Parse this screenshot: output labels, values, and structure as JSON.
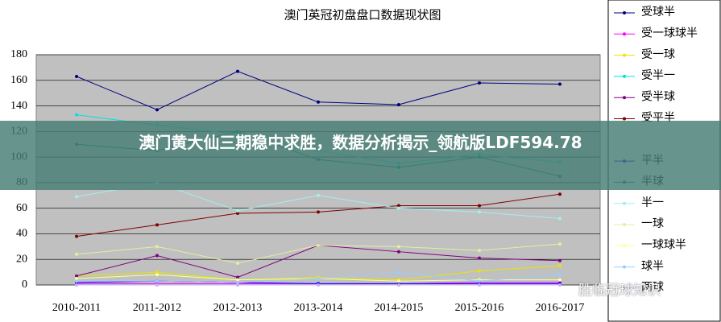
{
  "chart_data": {
    "type": "line",
    "title": "澳门英冠初盘盘口数据现状图",
    "categories": [
      "2010-2011",
      "2011-2012",
      "2012-2013",
      "2013-2014",
      "2014-2015",
      "2015-2016",
      "2016-2017"
    ],
    "ylim": [
      0,
      180
    ],
    "yticks": [
      0,
      20,
      40,
      60,
      80,
      100,
      120,
      140,
      160,
      180
    ],
    "grid": true,
    "series": [
      {
        "name": "受球半",
        "color": "#000080",
        "values": [
          163,
          137,
          167,
          143,
          141,
          158,
          157
        ]
      },
      {
        "name": "受一球球半",
        "color": "#ff00ff",
        "values": [
          1,
          1,
          1,
          1,
          1,
          2,
          2
        ]
      },
      {
        "name": "受一球",
        "color": "#e6e600",
        "values": [
          7,
          10,
          4,
          6,
          4,
          11,
          15
        ]
      },
      {
        "name": "受半一",
        "color": "#00e0e0",
        "values": [
          133,
          125,
          118,
          105,
          95,
          102,
          96
        ]
      },
      {
        "name": "受半球",
        "color": "#800080",
        "values": [
          7,
          23,
          6,
          31,
          26,
          21,
          19
        ]
      },
      {
        "name": "受平半",
        "color": "#800000",
        "values": [
          38,
          47,
          56,
          57,
          62,
          62,
          71
        ]
      },
      {
        "name": "平半",
        "color": "#0000ff",
        "values": [
          2,
          3,
          2,
          1,
          1,
          1,
          1
        ]
      },
      {
        "name": "半球",
        "color": "#008080",
        "values": [
          110,
          105,
          120,
          98,
          92,
          100,
          85
        ]
      },
      {
        "name": "半一",
        "color": "#a0f0f0",
        "values": [
          69,
          80,
          58,
          70,
          60,
          57,
          52
        ]
      },
      {
        "name": "一球",
        "color": "#e0f0a0",
        "values": [
          24,
          30,
          17,
          31,
          30,
          27,
          32
        ]
      },
      {
        "name": "一球球半",
        "color": "#ffff99",
        "values": [
          5,
          8,
          4,
          5,
          3,
          4,
          4
        ]
      },
      {
        "name": "球半",
        "color": "#99ccff",
        "values": [
          3,
          3,
          2,
          5,
          10,
          3,
          8
        ]
      },
      {
        "name": "两球",
        "color": "#ccaaff",
        "values": [
          0,
          0,
          0,
          0,
          0,
          0,
          0
        ]
      }
    ]
  },
  "banner": "澳门黄大仙三期稳中求胜，数据分析揭示_领航版LDF594.78",
  "watermark": "胜临冠球知识"
}
